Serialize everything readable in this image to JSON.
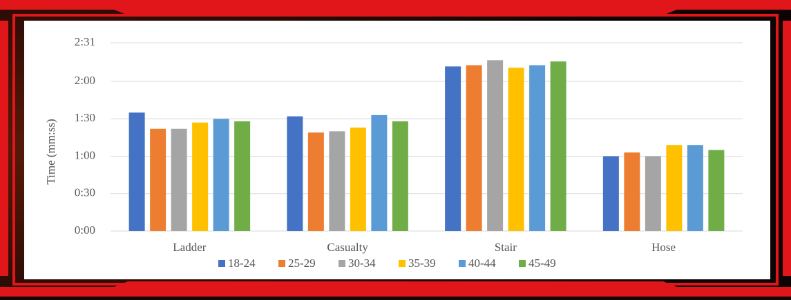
{
  "chart_data": {
    "type": "bar",
    "y_label": "Time (mm:ss)",
    "categories": [
      "Ladder",
      "Casualty",
      "Stair",
      "Hose"
    ],
    "series": [
      {
        "name": "18-24",
        "color": "#4472c4",
        "values": [
          95,
          92,
          132,
          60
        ]
      },
      {
        "name": "25-29",
        "color": "#ed7d31",
        "values": [
          82,
          79,
          133,
          63
        ]
      },
      {
        "name": "30-34",
        "color": "#a5a5a5",
        "values": [
          82,
          80,
          137,
          60
        ]
      },
      {
        "name": "35-39",
        "color": "#ffc000",
        "values": [
          87,
          83,
          131,
          69
        ]
      },
      {
        "name": "40-44",
        "color": "#5b9bd5",
        "values": [
          90,
          93,
          133,
          69
        ]
      },
      {
        "name": "45-49",
        "color": "#70ad47",
        "values": [
          88,
          88,
          136,
          65
        ]
      }
    ],
    "ylim": [
      0,
      151
    ],
    "yticks": [
      {
        "value": 0,
        "label": "0:00"
      },
      {
        "value": 30,
        "label": "0:30"
      },
      {
        "value": 60,
        "label": "1:00"
      },
      {
        "value": 90,
        "label": "1:30"
      },
      {
        "value": 120,
        "label": "2:00"
      },
      {
        "value": 151,
        "label": "2:31"
      }
    ],
    "grid": true,
    "legend": "bottom"
  }
}
